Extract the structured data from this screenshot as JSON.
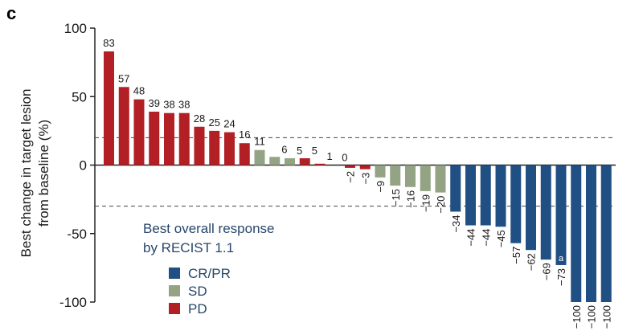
{
  "panel_label": "c",
  "colors": {
    "CR/PR": "#204f84",
    "SD": "#93a384",
    "PD": "#b21f24"
  },
  "chart_data": {
    "type": "bar",
    "title": "",
    "ylabel_lines": [
      "Best change in target lesion",
      "from baseline (%)"
    ],
    "xlabel": "",
    "ylim": [
      -100,
      100
    ],
    "yticks": [
      100,
      50,
      0,
      -50,
      -100
    ],
    "reference_lines": [
      20,
      -30
    ],
    "grid": false,
    "legend": {
      "title_lines": [
        "Best overall response",
        "by RECIST 1.1"
      ],
      "placement": "bottom-left",
      "entries": [
        "CR/PR",
        "SD",
        "PD"
      ]
    },
    "values": [
      83,
      57,
      48,
      39,
      38,
      38,
      28,
      25,
      24,
      16,
      11,
      6,
      5,
      5,
      1,
      0,
      -2,
      -3,
      -9,
      -15,
      -16,
      -19,
      -20,
      -34,
      -44,
      -44,
      -45,
      -57,
      -62,
      -69,
      -73,
      -100,
      -100,
      -100
    ],
    "labels": [
      "83",
      "57",
      "48",
      "39",
      "38",
      "38",
      "28",
      "25",
      "24",
      "16",
      "11",
      "6",
      "5",
      "5",
      "1",
      "0",
      "−2",
      "−3",
      "−9",
      "−15",
      "−16",
      "−19",
      "−20",
      "−34",
      "−44",
      "−44",
      "−45",
      "−57",
      "−62",
      "−69",
      "−73",
      "−100",
      "−100",
      "−100"
    ],
    "response": [
      "PD",
      "PD",
      "PD",
      "PD",
      "PD",
      "PD",
      "PD",
      "PD",
      "PD",
      "PD",
      "SD",
      "SD",
      "SD",
      "PD",
      "PD",
      "PD",
      "PD",
      "PD",
      "SD",
      "SD",
      "SD",
      "SD",
      "SD",
      "CR/PR",
      "CR/PR",
      "CR/PR",
      "CR/PR",
      "CR/PR",
      "CR/PR",
      "CR/PR",
      "CR/PR",
      "CR/PR",
      "CR/PR",
      "CR/PR"
    ],
    "annotations": [
      {
        "bar_index": 30,
        "text": "a"
      }
    ]
  }
}
